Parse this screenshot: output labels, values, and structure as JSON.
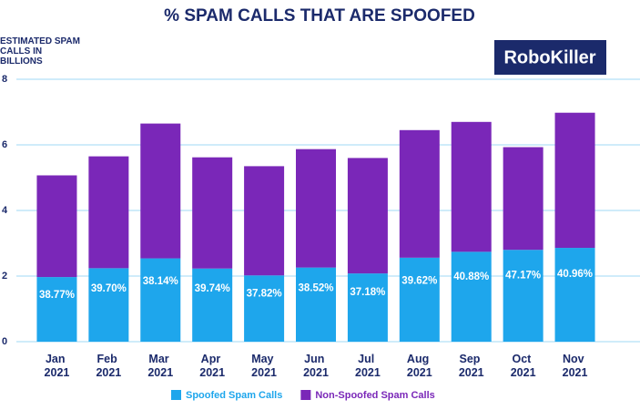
{
  "chart_data": {
    "type": "bar",
    "stacked": true,
    "title": "% SPAM CALLS THAT ARE SPOOFED",
    "y_label": "ESTIMATED SPAM CALLS IN BILLIONS",
    "logo": "RoboKiller",
    "categories": [
      "Jan 2021",
      "Feb 2021",
      "Mar 2021",
      "Apr 2021",
      "May 2021",
      "Jun 2021",
      "Jul 2021",
      "Aug 2021",
      "Sep 2021",
      "Oct 2021",
      "Nov 2021"
    ],
    "series": [
      {
        "name": "Spoofed Spam Calls",
        "color": "#1ea6ec",
        "values": [
          1.97,
          2.24,
          2.54,
          2.23,
          2.02,
          2.26,
          2.08,
          2.56,
          2.74,
          2.8,
          2.86
        ],
        "bar_labels": [
          "38.77%",
          "39.70%",
          "38.14%",
          "39.74%",
          "37.82%",
          "38.52%",
          "37.18%",
          "39.62%",
          "40.88%",
          "47.17%",
          "40.96%"
        ]
      },
      {
        "name": "Non-Spoofed Spam Calls",
        "color": "#7a27b8",
        "values": [
          3.1,
          3.41,
          4.11,
          3.39,
          3.33,
          3.61,
          3.52,
          3.89,
          3.96,
          3.13,
          4.12
        ]
      }
    ],
    "ylim": [
      0,
      8
    ],
    "yticks": [
      0,
      2,
      4,
      6,
      8
    ],
    "grid": true,
    "legend": "bottom"
  }
}
